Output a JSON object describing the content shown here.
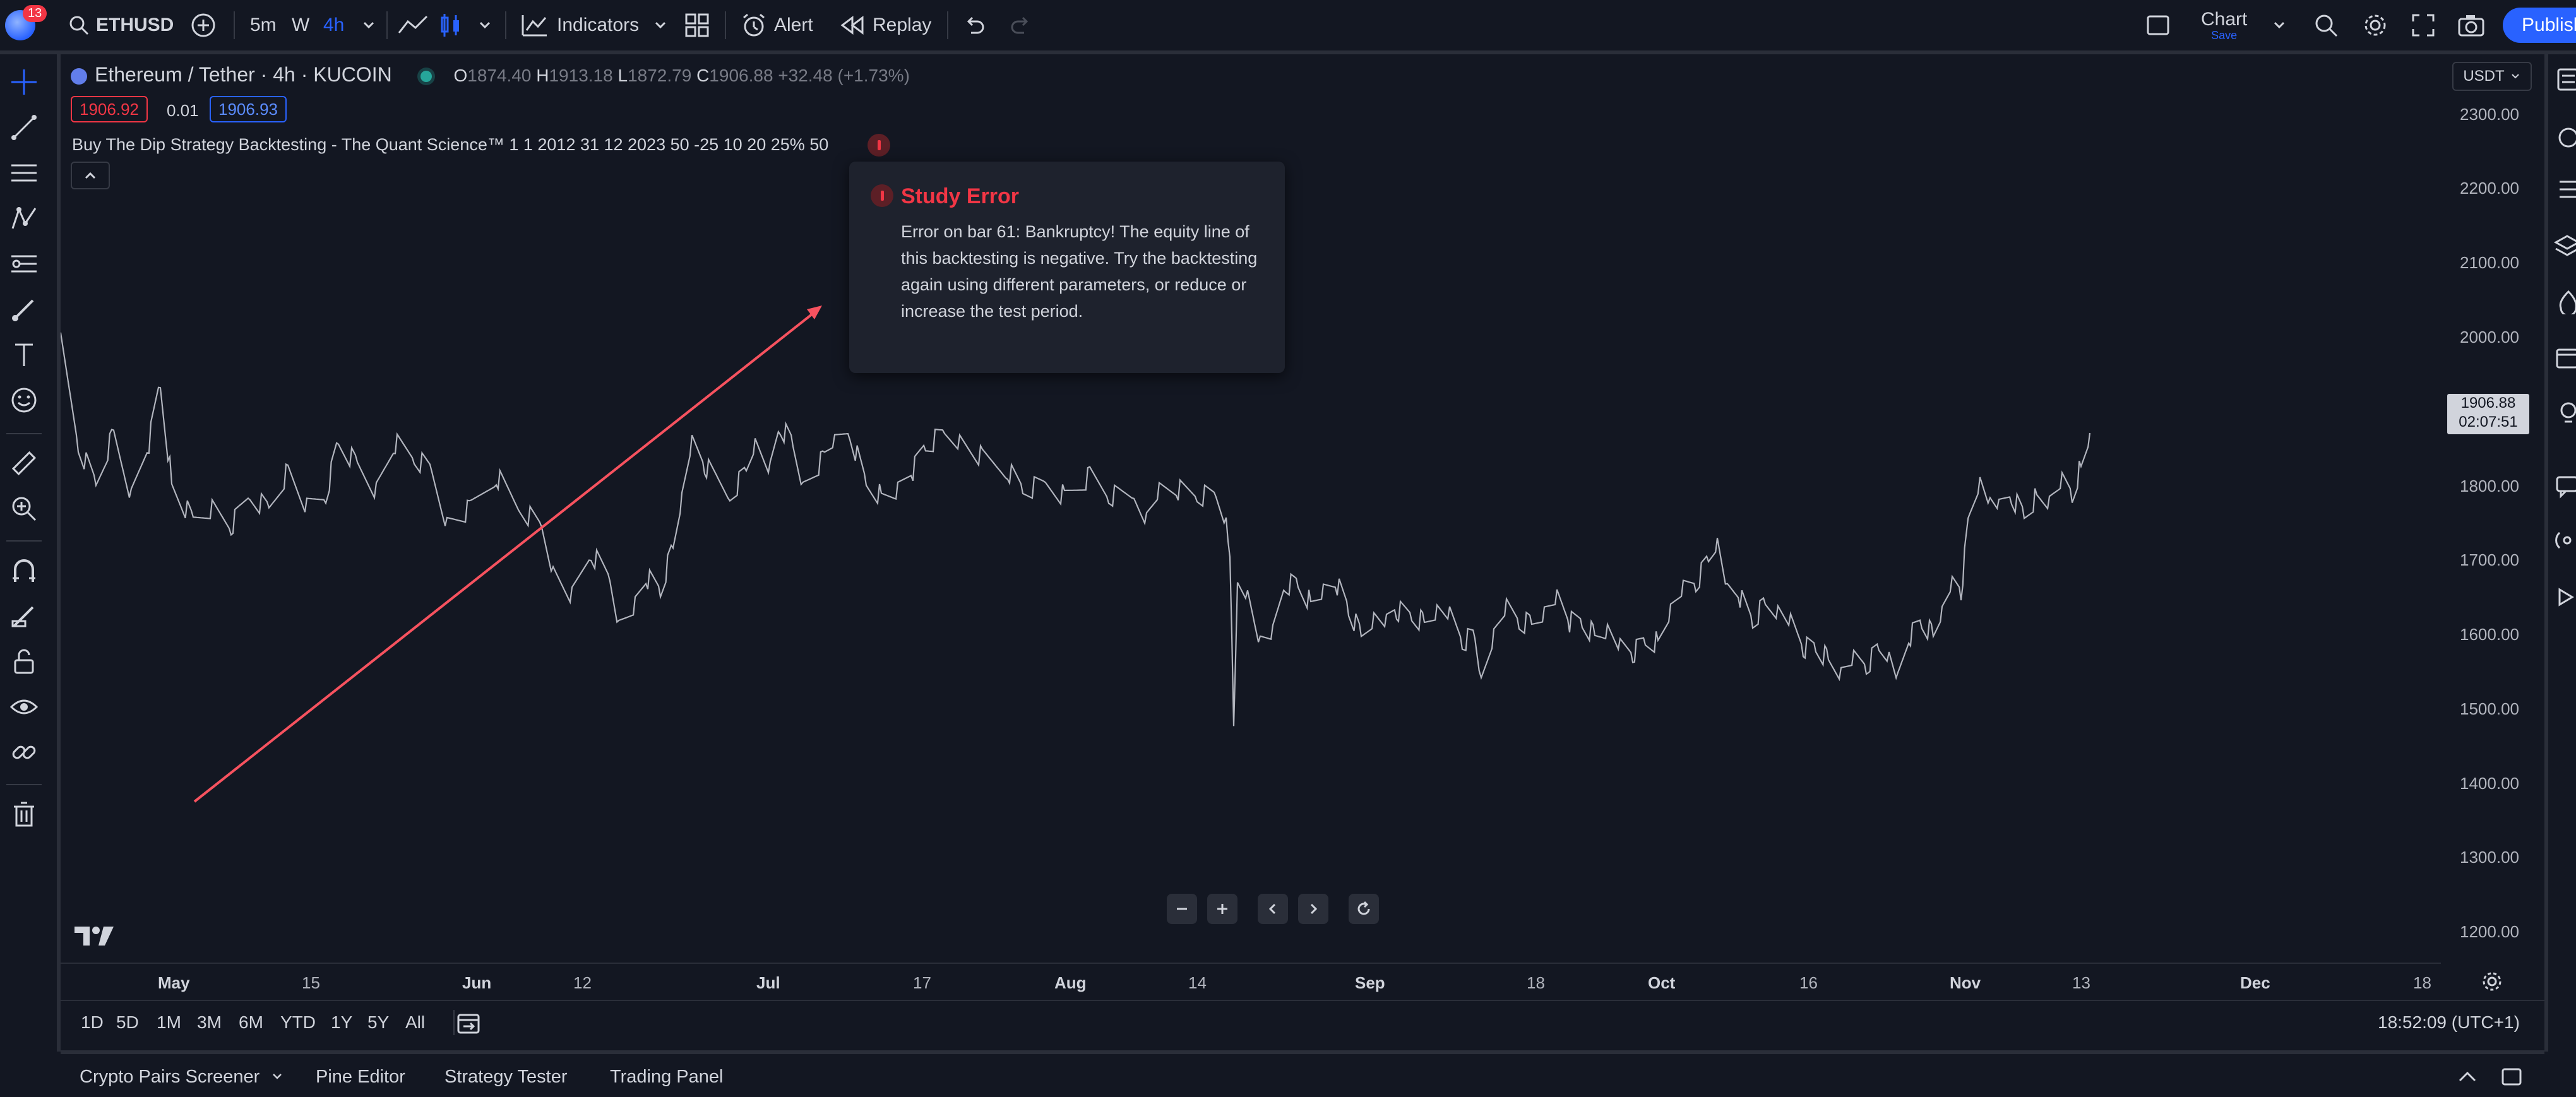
{
  "top_toolbar": {
    "notification_count": "13",
    "symbol": "ETHUSD",
    "intervals": [
      "5m",
      "W",
      "4h"
    ],
    "indicators_label": "Indicators",
    "alert_label": "Alert",
    "replay_label": "Replay",
    "layout_name": "Chart",
    "layout_status": "Save",
    "publish_label": "Publish"
  },
  "legend": {
    "title": "Ethereum / Tether · 4h · KUCOIN",
    "open_label": "O",
    "open": "1874.40",
    "high_label": "H",
    "high": "1913.18",
    "low_label": "L",
    "low": "1872.79",
    "close_label": "C",
    "close": "1906.88",
    "change": "+32.48 (+1.73%)",
    "bid": "1906.92",
    "spread": "0.01",
    "ask": "1906.93",
    "indicator": "Buy The Dip Strategy Backtesting - The Quant Science™ 1 1 2012 31 12 2023 50 -25 10 20 25% 50"
  },
  "study_error": {
    "title": "Study Error",
    "message": "Error on bar 61: Bankruptcy! The equity line of this backtesting is negative. Try the backtesting again using different parameters, or reduce or increase the test period."
  },
  "price_axis": {
    "currency": "USDT",
    "labels": [
      "2300.00",
      "2200.00",
      "2100.00",
      "2000.00",
      "1800.00",
      "1700.00",
      "1600.00",
      "1500.00",
      "1400.00",
      "1300.00",
      "1200.00"
    ],
    "last_price": "1906.88",
    "countdown": "02:07:51"
  },
  "time_axis": {
    "labels": [
      "May",
      "15",
      "Jun",
      "12",
      "Jul",
      "17",
      "Aug",
      "14",
      "Sep",
      "18",
      "Oct",
      "16",
      "Nov",
      "13",
      "Dec",
      "18"
    ]
  },
  "periods": [
    "1D",
    "5D",
    "1M",
    "3M",
    "6M",
    "YTD",
    "1Y",
    "5Y",
    "All"
  ],
  "clock": "18:52:09 (UTC+1)",
  "bottom_tabs": [
    "Crypto Pairs Screener",
    "Pine Editor",
    "Strategy Tester",
    "Trading Panel"
  ],
  "colors": {
    "background": "#131722",
    "accent": "#2962ff",
    "error": "#f23645",
    "trend_line": "#f7525f",
    "price_series": "#b2b5be"
  }
}
